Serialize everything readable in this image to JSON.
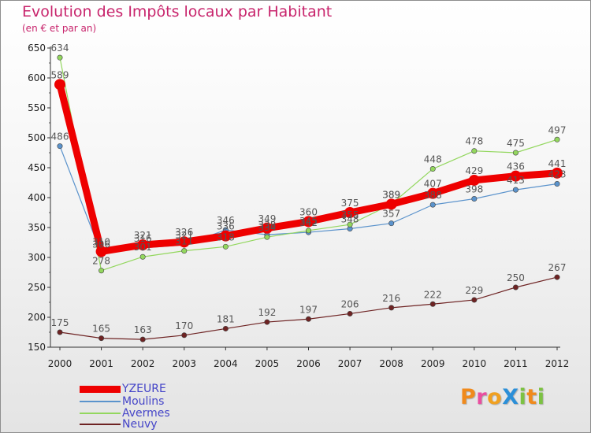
{
  "chart_data": {
    "type": "line",
    "title": "Evolution des Impôts locaux par Habitant",
    "subtitle": "(en € et par an)",
    "xlabel": "",
    "ylabel": "",
    "categories": [
      "2000",
      "2001",
      "2002",
      "2003",
      "2004",
      "2005",
      "2006",
      "2007",
      "2008",
      "2009",
      "2010",
      "2011",
      "2012"
    ],
    "ylim": [
      150,
      650
    ],
    "yticks": [
      150,
      200,
      250,
      300,
      350,
      400,
      450,
      500,
      550,
      600,
      650
    ],
    "grid": false,
    "legend_position": "bottom-left",
    "series": [
      {
        "name": "Moulins",
        "color": "#5b93cc",
        "values": [
          486,
          306,
          316,
          321,
          346,
          338,
          342,
          348,
          357,
          388,
          398,
          413,
          423
        ]
      },
      {
        "name": "Avermes",
        "color": "#93d75e",
        "values": [
          634,
          278,
          301,
          311,
          318,
          334,
          345,
          355,
          389,
          448,
          478,
          475,
          497
        ]
      },
      {
        "name": "Neuvy",
        "color": "#6e2323",
        "values": [
          175,
          165,
          163,
          170,
          181,
          192,
          197,
          206,
          216,
          222,
          229,
          250,
          267
        ]
      },
      {
        "name": "YZEURE",
        "color": "#ee0000",
        "values": [
          589,
          310,
          321,
          326,
          336,
          349,
          360,
          375,
          389,
          407,
          429,
          436,
          441
        ]
      }
    ],
    "legend_order": [
      "YZEURE",
      "Moulins",
      "Avermes",
      "Neuvy"
    ]
  },
  "logo": {
    "letters": [
      {
        "ch": "P",
        "color": "#f08a1c"
      },
      {
        "ch": "r",
        "color": "#e94ea0"
      },
      {
        "ch": "o",
        "color": "#f0a020"
      },
      {
        "ch": "X",
        "color": "#2b8fd8"
      },
      {
        "ch": "i",
        "color": "#7cc242"
      },
      {
        "ch": "t",
        "color": "#f08a1c"
      },
      {
        "ch": "i",
        "color": "#7cc242"
      }
    ]
  }
}
